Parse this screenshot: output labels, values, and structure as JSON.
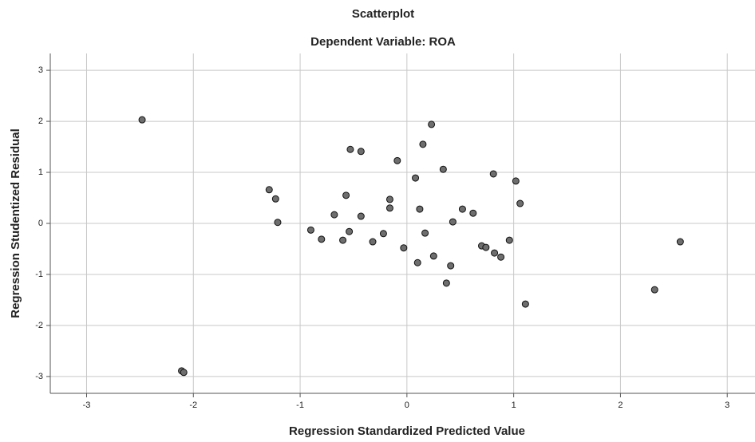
{
  "chart_data": {
    "type": "scatter",
    "title": "Scatterplot",
    "subtitle": "Dependent Variable: ROA",
    "x_label": "Regression Standardized Predicted Value",
    "y_label": "Regression Studentized Residual",
    "color": "#6e6e6e",
    "grid": true,
    "xlim": [
      -3.34,
      3.26
    ],
    "ylim": [
      -3.33,
      3.33
    ],
    "xticks": [
      -3,
      -2,
      -1,
      0,
      1,
      2,
      3
    ],
    "yticks": [
      -3,
      -2,
      -1,
      0,
      1,
      2,
      3
    ],
    "x": [
      -2.48,
      -2.11,
      -2.09,
      -1.29,
      -1.23,
      -1.21,
      -0.9,
      -0.8,
      -0.68,
      -0.6,
      -0.57,
      -0.54,
      -0.53,
      -0.43,
      -0.43,
      -0.32,
      -0.22,
      -0.16,
      -0.16,
      -0.09,
      -0.03,
      0.08,
      0.1,
      0.12,
      0.15,
      0.17,
      0.23,
      0.25,
      0.34,
      0.37,
      0.41,
      0.43,
      0.52,
      0.62,
      0.7,
      0.74,
      0.81,
      0.82,
      0.88,
      0.96,
      1.02,
      1.06,
      1.11,
      2.32,
      2.56
    ],
    "values": [
      2.03,
      -2.89,
      -2.92,
      0.66,
      0.48,
      0.02,
      -0.13,
      -0.31,
      0.17,
      -0.33,
      0.55,
      -0.16,
      1.45,
      1.41,
      0.14,
      -0.36,
      -0.2,
      0.47,
      0.3,
      1.23,
      -0.48,
      0.89,
      -0.77,
      0.28,
      1.55,
      -0.19,
      1.94,
      -0.64,
      1.06,
      -1.17,
      -0.83,
      0.03,
      0.28,
      0.2,
      -0.44,
      -0.47,
      0.97,
      -0.58,
      -0.66,
      -0.33,
      0.83,
      0.39,
      -1.58,
      -1.3,
      -0.36
    ]
  }
}
